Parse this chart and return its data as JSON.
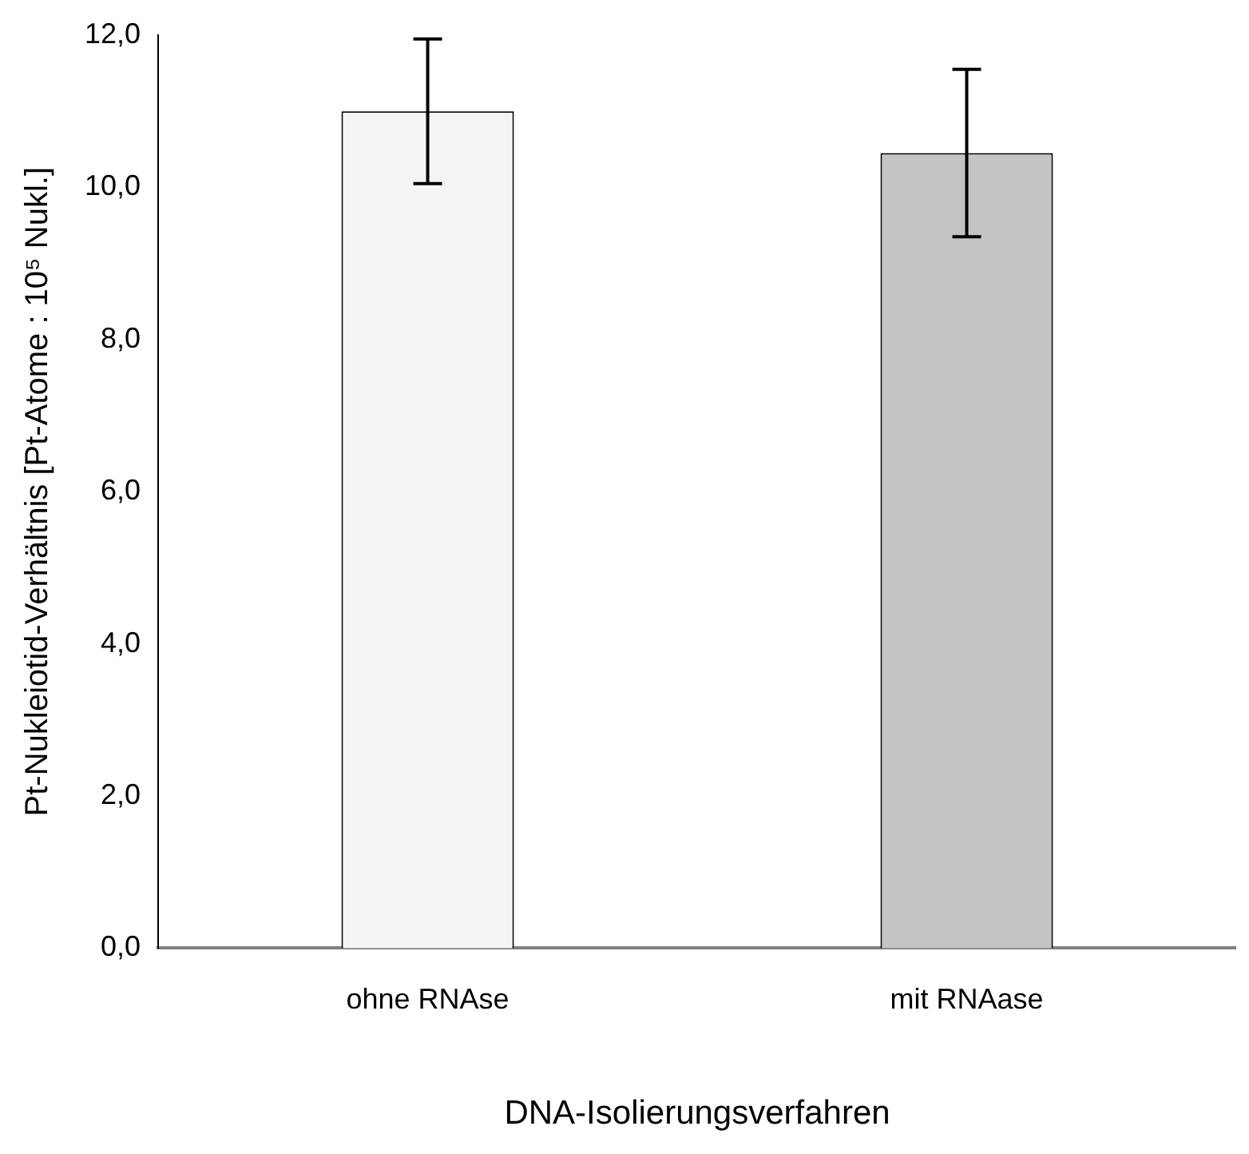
{
  "chart_data": {
    "type": "bar",
    "xlabel": "DNA-Isolierungsverfahren",
    "ylabel": "Pt-Nukleiotid-Verhältnis [Pt-Atome : 10⁵ Nukl.]",
    "categories": [
      "ohne RNAse",
      "mit RNAase"
    ],
    "values": [
      11.0,
      10.45
    ],
    "errors": [
      0.95,
      1.1
    ],
    "colors": [
      "#f4f4f4",
      "#c4c4c4"
    ],
    "ylim": [
      0,
      12
    ],
    "yticks": [
      {
        "value": 0,
        "label": "0,0"
      },
      {
        "value": 2,
        "label": "2,0"
      },
      {
        "value": 4,
        "label": "4,0"
      },
      {
        "value": 6,
        "label": "6,0"
      },
      {
        "value": 8,
        "label": "8,0"
      },
      {
        "value": 10,
        "label": "10,0"
      },
      {
        "value": 12,
        "label": "12,0"
      }
    ],
    "grid": false,
    "legend": false
  }
}
